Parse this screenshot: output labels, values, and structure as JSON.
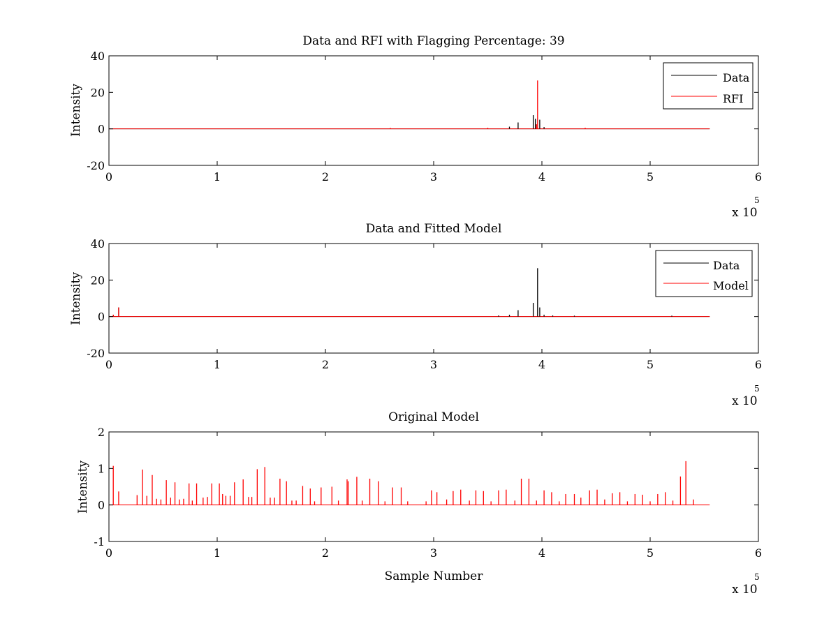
{
  "chart_data": [
    {
      "type": "line",
      "title": "Data and RFI with Flagging Percentage: 39",
      "xlabel": "",
      "ylabel": "Intensity",
      "xlim": [
        0,
        6
      ],
      "ylim": [
        -20,
        40
      ],
      "x_multiplier": "x 10",
      "x_multiplier_exp": "5",
      "xticks": [
        0,
        1,
        2,
        3,
        4,
        5,
        6
      ],
      "yticks": [
        -20,
        0,
        20,
        40
      ],
      "data_end_x": 5.55,
      "legend": {
        "position": "top-right",
        "entries": [
          "Data",
          "RFI"
        ]
      },
      "series": [
        {
          "name": "Data",
          "color": "#000000",
          "spikes": [
            {
              "x": 3.78,
              "y": 3.5
            },
            {
              "x": 3.92,
              "y": 7.5
            },
            {
              "x": 3.94,
              "y": 5.5
            },
            {
              "x": 3.98,
              "y": 5.0
            },
            {
              "x": 4.02,
              "y": 1.0
            },
            {
              "x": 3.7,
              "y": 1.2
            }
          ]
        },
        {
          "name": "RFI",
          "color": "#ff0000",
          "spikes": [
            {
              "x": 3.96,
              "y": 26.5
            },
            {
              "x": 3.95,
              "y": 2.5
            },
            {
              "x": 4.4,
              "y": 0.6
            },
            {
              "x": 2.6,
              "y": 0.5
            },
            {
              "x": 3.5,
              "y": 0.6
            }
          ]
        }
      ]
    },
    {
      "type": "line",
      "title": "Data and Fitted Model",
      "xlabel": "",
      "ylabel": "Intensity",
      "xlim": [
        0,
        6
      ],
      "ylim": [
        -20,
        40
      ],
      "x_multiplier": "x 10",
      "x_multiplier_exp": "5",
      "xticks": [
        0,
        1,
        2,
        3,
        4,
        5,
        6
      ],
      "yticks": [
        -20,
        0,
        20,
        40
      ],
      "data_end_x": 5.55,
      "legend": {
        "position": "top-right",
        "entries": [
          "Data",
          "Model"
        ]
      },
      "series": [
        {
          "name": "Data",
          "color": "#000000",
          "spikes": [
            {
              "x": 3.96,
              "y": 26.5
            },
            {
              "x": 3.92,
              "y": 7.5
            },
            {
              "x": 3.78,
              "y": 3.5
            },
            {
              "x": 3.98,
              "y": 5.0
            },
            {
              "x": 4.02,
              "y": 1.0
            },
            {
              "x": 3.7,
              "y": 1.0
            },
            {
              "x": 0.09,
              "y": 5.0
            },
            {
              "x": 0.04,
              "y": 1.0
            },
            {
              "x": 3.6,
              "y": 0.6
            },
            {
              "x": 4.1,
              "y": 0.6
            },
            {
              "x": 4.3,
              "y": 0.5
            },
            {
              "x": 5.2,
              "y": 0.5
            }
          ]
        },
        {
          "name": "Model",
          "color": "#ff0000",
          "spikes": [
            {
              "x": 0.09,
              "y": 5.0
            },
            {
              "x": 0.04,
              "y": 1.0
            }
          ]
        }
      ]
    },
    {
      "type": "line",
      "title": "Original Model",
      "xlabel": "Sample Number",
      "ylabel": "Intensity",
      "xlim": [
        0,
        6
      ],
      "ylim": [
        -1,
        2
      ],
      "x_multiplier": "x 10",
      "x_multiplier_exp": "5",
      "xticks": [
        0,
        1,
        2,
        3,
        4,
        5,
        6
      ],
      "yticks": [
        -1,
        0,
        1,
        2
      ],
      "data_end_x": 5.55,
      "series": [
        {
          "name": "Model",
          "color": "#ff0000",
          "spikes": [
            {
              "x": 0.04,
              "y": 1.07
            },
            {
              "x": 0.09,
              "y": 0.37
            },
            {
              "x": 0.26,
              "y": 0.27
            },
            {
              "x": 0.31,
              "y": 0.97
            },
            {
              "x": 0.35,
              "y": 0.25
            },
            {
              "x": 0.4,
              "y": 0.82
            },
            {
              "x": 0.44,
              "y": 0.17
            },
            {
              "x": 0.48,
              "y": 0.15
            },
            {
              "x": 0.53,
              "y": 0.68
            },
            {
              "x": 0.57,
              "y": 0.2
            },
            {
              "x": 0.61,
              "y": 0.62
            },
            {
              "x": 0.65,
              "y": 0.15
            },
            {
              "x": 0.69,
              "y": 0.17
            },
            {
              "x": 0.74,
              "y": 0.59
            },
            {
              "x": 0.77,
              "y": 0.12
            },
            {
              "x": 0.81,
              "y": 0.59
            },
            {
              "x": 0.87,
              "y": 0.2
            },
            {
              "x": 0.91,
              "y": 0.22
            },
            {
              "x": 0.95,
              "y": 0.59
            },
            {
              "x": 1.02,
              "y": 0.59
            },
            {
              "x": 1.05,
              "y": 0.3
            },
            {
              "x": 1.08,
              "y": 0.25
            },
            {
              "x": 1.12,
              "y": 0.25
            },
            {
              "x": 1.16,
              "y": 0.62
            },
            {
              "x": 1.24,
              "y": 0.7
            },
            {
              "x": 1.29,
              "y": 0.22
            },
            {
              "x": 1.32,
              "y": 0.22
            },
            {
              "x": 1.37,
              "y": 0.98
            },
            {
              "x": 1.44,
              "y": 1.04
            },
            {
              "x": 1.49,
              "y": 0.2
            },
            {
              "x": 1.53,
              "y": 0.2
            },
            {
              "x": 1.58,
              "y": 0.72
            },
            {
              "x": 1.64,
              "y": 0.65
            },
            {
              "x": 1.69,
              "y": 0.12
            },
            {
              "x": 1.73,
              "y": 0.12
            },
            {
              "x": 1.79,
              "y": 0.52
            },
            {
              "x": 1.86,
              "y": 0.45
            },
            {
              "x": 1.9,
              "y": 0.1
            },
            {
              "x": 1.96,
              "y": 0.48
            },
            {
              "x": 2.06,
              "y": 0.5
            },
            {
              "x": 2.12,
              "y": 0.12
            },
            {
              "x": 2.2,
              "y": 0.7
            },
            {
              "x": 2.21,
              "y": 0.65
            },
            {
              "x": 2.29,
              "y": 0.77
            },
            {
              "x": 2.34,
              "y": 0.12
            },
            {
              "x": 2.41,
              "y": 0.72
            },
            {
              "x": 2.49,
              "y": 0.65
            },
            {
              "x": 2.55,
              "y": 0.1
            },
            {
              "x": 2.62,
              "y": 0.48
            },
            {
              "x": 2.7,
              "y": 0.48
            },
            {
              "x": 2.76,
              "y": 0.1
            },
            {
              "x": 2.93,
              "y": 0.1
            },
            {
              "x": 2.98,
              "y": 0.4
            },
            {
              "x": 3.03,
              "y": 0.35
            },
            {
              "x": 3.12,
              "y": 0.15
            },
            {
              "x": 3.18,
              "y": 0.38
            },
            {
              "x": 3.25,
              "y": 0.42
            },
            {
              "x": 3.33,
              "y": 0.12
            },
            {
              "x": 3.39,
              "y": 0.4
            },
            {
              "x": 3.46,
              "y": 0.38
            },
            {
              "x": 3.53,
              "y": 0.1
            },
            {
              "x": 3.6,
              "y": 0.4
            },
            {
              "x": 3.67,
              "y": 0.42
            },
            {
              "x": 3.75,
              "y": 0.12
            },
            {
              "x": 3.81,
              "y": 0.72
            },
            {
              "x": 3.88,
              "y": 0.72
            },
            {
              "x": 3.95,
              "y": 0.12
            },
            {
              "x": 4.02,
              "y": 0.4
            },
            {
              "x": 4.09,
              "y": 0.35
            },
            {
              "x": 4.16,
              "y": 0.1
            },
            {
              "x": 4.22,
              "y": 0.3
            },
            {
              "x": 4.3,
              "y": 0.3
            },
            {
              "x": 4.36,
              "y": 0.2
            },
            {
              "x": 4.44,
              "y": 0.4
            },
            {
              "x": 4.51,
              "y": 0.42
            },
            {
              "x": 4.58,
              "y": 0.15
            },
            {
              "x": 4.65,
              "y": 0.32
            },
            {
              "x": 4.72,
              "y": 0.35
            },
            {
              "x": 4.79,
              "y": 0.1
            },
            {
              "x": 4.86,
              "y": 0.3
            },
            {
              "x": 4.93,
              "y": 0.28
            },
            {
              "x": 5.0,
              "y": 0.1
            },
            {
              "x": 5.07,
              "y": 0.3
            },
            {
              "x": 5.14,
              "y": 0.35
            },
            {
              "x": 5.21,
              "y": 0.12
            },
            {
              "x": 5.28,
              "y": 0.78
            },
            {
              "x": 5.33,
              "y": 1.2
            },
            {
              "x": 5.4,
              "y": 0.15
            }
          ]
        }
      ]
    }
  ]
}
